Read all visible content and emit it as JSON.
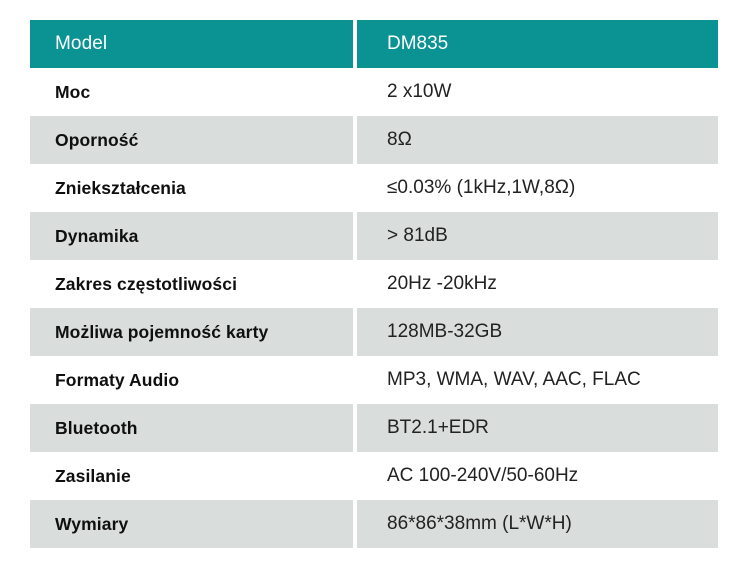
{
  "table": {
    "header": {
      "label": "Model",
      "value": "DM835"
    },
    "rows": [
      {
        "label": "Moc",
        "value": "2 x10W"
      },
      {
        "label": "Oporność",
        "value": "8Ω"
      },
      {
        "label": "Zniekształcenia",
        "value": "≤0.03% (1kHz,1W,8Ω)"
      },
      {
        "label": "Dynamika",
        "value": "> 81dB"
      },
      {
        "label": "Zakres częstotliwości",
        "value": "20Hz -20kHz"
      },
      {
        "label": "Możliwa pojemność karty",
        "value": "128MB-32GB"
      },
      {
        "label": "Formaty Audio",
        "value": "MP3, WMA, WAV, AAC, FLAC"
      },
      {
        "label": "Bluetooth",
        "value": "BT2.1+EDR"
      },
      {
        "label": "Zasilanie",
        "value": "AC 100-240V/50-60Hz"
      },
      {
        "label": "Wymiary",
        "value": "86*86*38mm (L*W*H)"
      }
    ],
    "colors": {
      "header_bg": "#0b9292",
      "alt_row_bg": "#d9dddb",
      "header_text": "#ffffff",
      "label_text": "#0f0f0f",
      "value_text": "#222222",
      "page_bg": "#ffffff"
    }
  }
}
